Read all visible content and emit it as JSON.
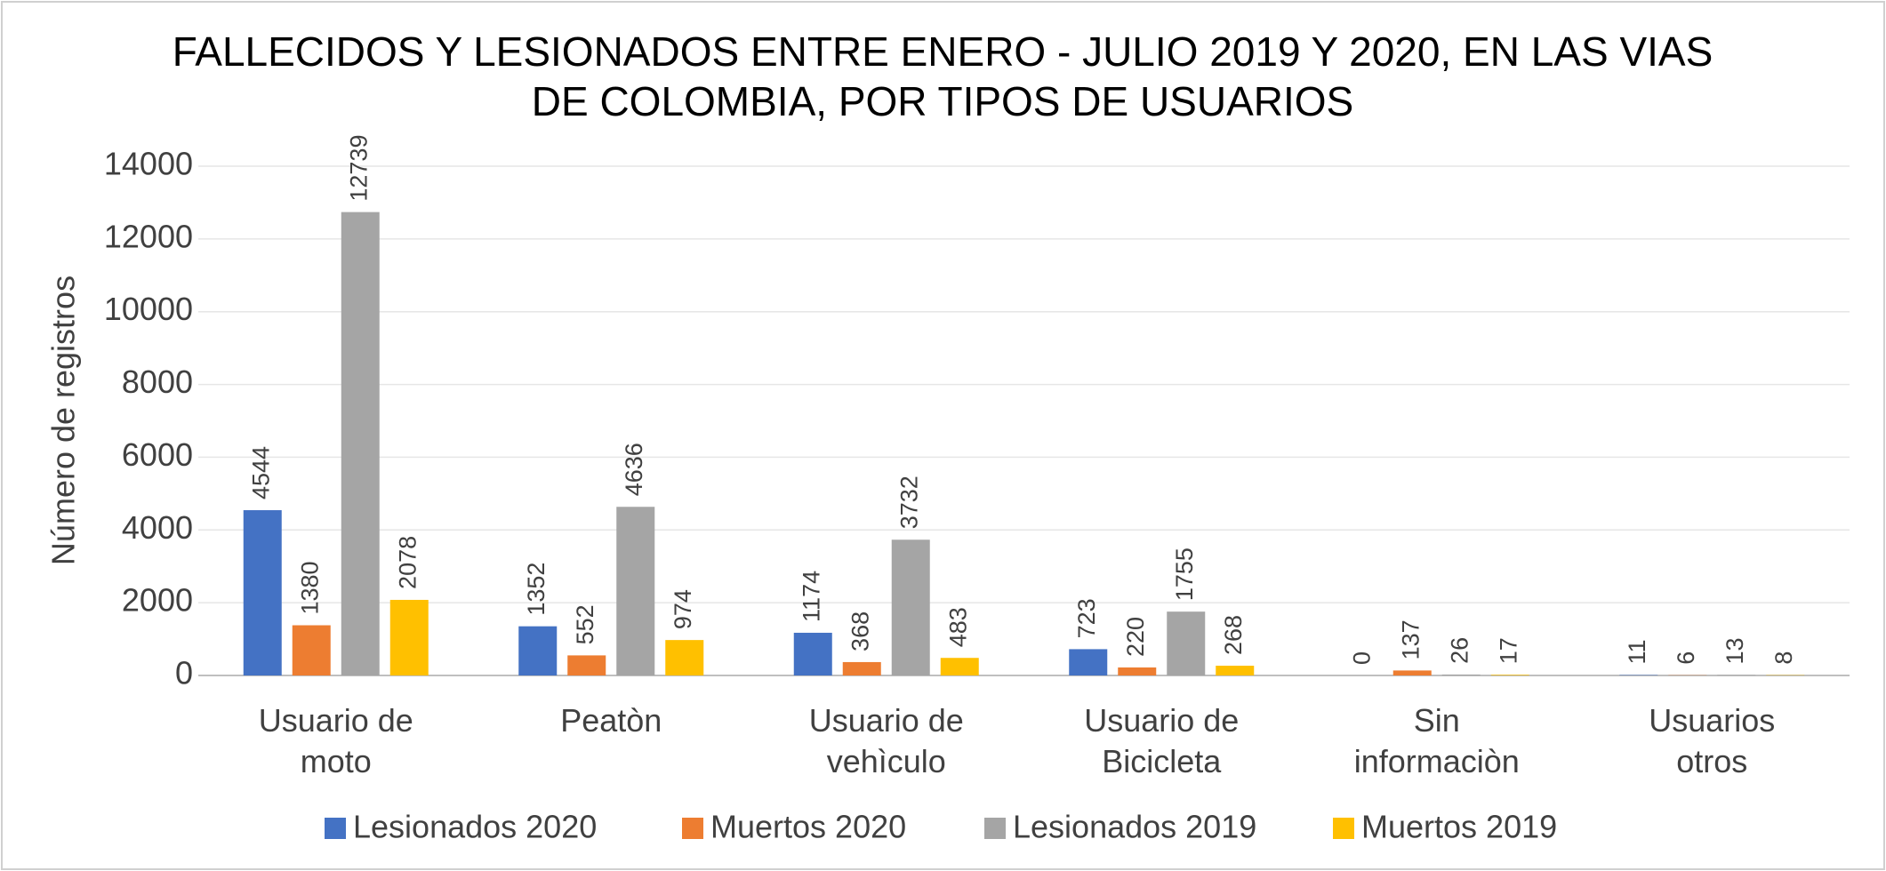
{
  "chart_data": {
    "type": "bar",
    "title": "FALLECIDOS Y LESIONADOS ENTRE ENERO - JULIO 2019 Y 2020, EN LAS VIAS DE COLOMBIA, POR TIPOS DE USUARIOS",
    "y_label": "Número de registros",
    "categories": [
      "Usuario de moto",
      "Peatòn",
      "Usuario de vehìculo",
      "Usuario de Bicicleta",
      "Sin informaciòn",
      "Usuarios otros"
    ],
    "series": [
      {
        "name": "Lesionados 2020",
        "color": "#4472c4",
        "values": [
          4544,
          1352,
          1174,
          723,
          0,
          11
        ]
      },
      {
        "name": "Muertos 2020",
        "color": "#ed7d31",
        "values": [
          1380,
          552,
          368,
          220,
          137,
          6
        ]
      },
      {
        "name": "Lesionados 2019",
        "color": "#a5a5a5",
        "values": [
          12739,
          4636,
          3732,
          1755,
          26,
          13
        ]
      },
      {
        "name": "Muertos 2019",
        "color": "#ffc000",
        "values": [
          2078,
          974,
          483,
          268,
          17,
          8
        ]
      }
    ],
    "ylim": [
      0,
      14000
    ],
    "yticks": [
      0,
      2000,
      4000,
      6000,
      8000,
      10000,
      12000,
      14000
    ],
    "grid": true,
    "legend": "bottom"
  }
}
